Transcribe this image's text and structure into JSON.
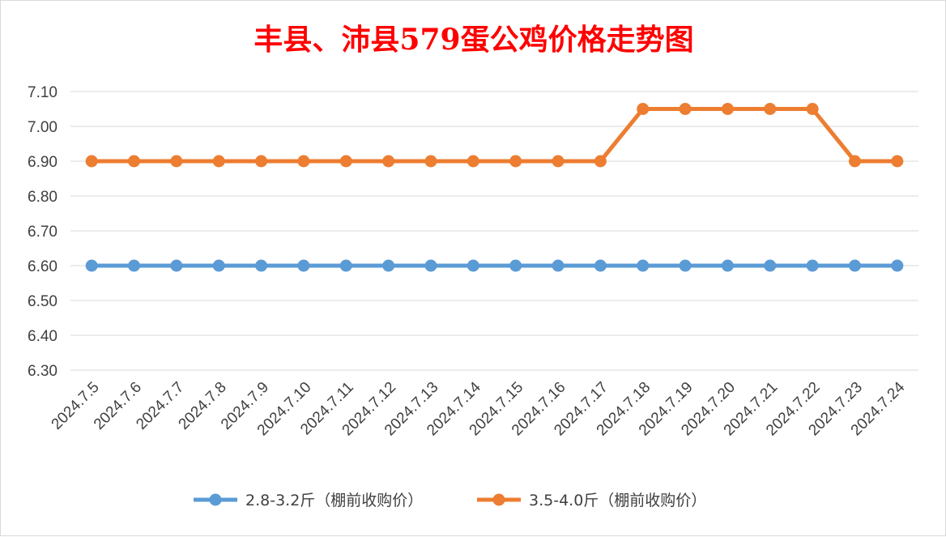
{
  "chart_data": {
    "type": "line",
    "title": "丰县、沛县579蛋公鸡价格走势图",
    "xlabel": "",
    "ylabel": "",
    "categories": [
      "2024.7.5",
      "2024.7.6",
      "2024.7.7",
      "2024.7.8",
      "2024.7.9",
      "2024.7.10",
      "2024.7.11",
      "2024.7.12",
      "2024.7.13",
      "2024.7.14",
      "2024.7.15",
      "2024.7.16",
      "2024.7.17",
      "2024.7.18",
      "2024.7.19",
      "2024.7.20",
      "2024.7.21",
      "2024.7.22",
      "2024.7.23",
      "2024.7.24"
    ],
    "ylim": [
      6.3,
      7.1
    ],
    "yticks": [
      "6.30",
      "6.40",
      "6.50",
      "6.60",
      "6.70",
      "6.80",
      "6.90",
      "7.00",
      "7.10"
    ],
    "grid": true,
    "legend_position": "bottom",
    "series": [
      {
        "name": "2.8-3.2斤（棚前收购价）",
        "color": "#5b9bd5",
        "values": [
          6.6,
          6.6,
          6.6,
          6.6,
          6.6,
          6.6,
          6.6,
          6.6,
          6.6,
          6.6,
          6.6,
          6.6,
          6.6,
          6.6,
          6.6,
          6.6,
          6.6,
          6.6,
          6.6,
          6.6
        ]
      },
      {
        "name": "3.5-4.0斤（棚前收购价）",
        "color": "#ed7d31",
        "values": [
          6.9,
          6.9,
          6.9,
          6.9,
          6.9,
          6.9,
          6.9,
          6.9,
          6.9,
          6.9,
          6.9,
          6.9,
          6.9,
          7.05,
          7.05,
          7.05,
          7.05,
          7.05,
          6.9,
          6.9
        ]
      }
    ]
  }
}
